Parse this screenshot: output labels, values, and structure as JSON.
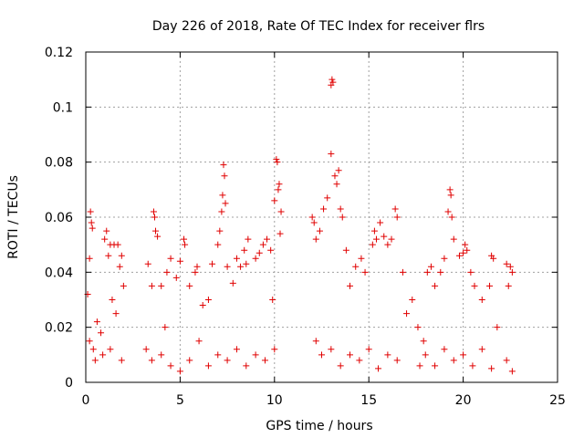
{
  "chart_data": {
    "type": "scatter",
    "title": "Day 226 of 2018, Rate Of TEC Index for receiver flrs",
    "xlabel": "GPS time / hours",
    "ylabel": "ROTI / TECUs",
    "xlim": [
      0,
      25
    ],
    "ylim": [
      0,
      0.12
    ],
    "xticks": [
      "0",
      "5",
      "10",
      "15",
      "20",
      "25"
    ],
    "yticks": [
      "0",
      "0.02",
      "0.04",
      "0.06",
      "0.08",
      "0.1",
      "0.12"
    ],
    "grid": true,
    "marker": "+",
    "colors": {
      "series": "#e00000",
      "grid": "#a0a0a0",
      "axis": "#000000"
    },
    "series": [
      {
        "name": "ROTI",
        "points": [
          [
            0.1,
            0.032
          ],
          [
            0.2,
            0.045
          ],
          [
            0.25,
            0.062
          ],
          [
            0.3,
            0.058
          ],
          [
            0.35,
            0.056
          ],
          [
            0.2,
            0.015
          ],
          [
            0.4,
            0.012
          ],
          [
            0.6,
            0.022
          ],
          [
            0.8,
            0.018
          ],
          [
            1.0,
            0.052
          ],
          [
            1.1,
            0.055
          ],
          [
            1.2,
            0.046
          ],
          [
            1.3,
            0.05
          ],
          [
            1.5,
            0.05
          ],
          [
            1.7,
            0.05
          ],
          [
            1.8,
            0.042
          ],
          [
            1.9,
            0.046
          ],
          [
            2.0,
            0.035
          ],
          [
            1.4,
            0.03
          ],
          [
            1.6,
            0.025
          ],
          [
            0.5,
            0.008
          ],
          [
            0.9,
            0.01
          ],
          [
            1.3,
            0.012
          ],
          [
            1.9,
            0.008
          ],
          [
            3.3,
            0.043
          ],
          [
            3.5,
            0.035
          ],
          [
            3.6,
            0.062
          ],
          [
            3.65,
            0.06
          ],
          [
            3.7,
            0.055
          ],
          [
            3.8,
            0.053
          ],
          [
            4.0,
            0.035
          ],
          [
            4.2,
            0.02
          ],
          [
            4.3,
            0.04
          ],
          [
            4.5,
            0.045
          ],
          [
            4.8,
            0.038
          ],
          [
            5.0,
            0.044
          ],
          [
            5.2,
            0.052
          ],
          [
            5.25,
            0.05
          ],
          [
            5.5,
            0.035
          ],
          [
            5.8,
            0.04
          ],
          [
            5.9,
            0.042
          ],
          [
            6.2,
            0.028
          ],
          [
            6.5,
            0.03
          ],
          [
            6.7,
            0.043
          ],
          [
            7.0,
            0.05
          ],
          [
            7.1,
            0.055
          ],
          [
            7.2,
            0.062
          ],
          [
            7.25,
            0.068
          ],
          [
            7.3,
            0.079
          ],
          [
            7.35,
            0.075
          ],
          [
            7.4,
            0.065
          ],
          [
            7.5,
            0.042
          ],
          [
            7.8,
            0.036
          ],
          [
            8.0,
            0.045
          ],
          [
            8.2,
            0.042
          ],
          [
            8.4,
            0.048
          ],
          [
            8.5,
            0.043
          ],
          [
            8.6,
            0.052
          ],
          [
            9.0,
            0.045
          ],
          [
            9.2,
            0.047
          ],
          [
            9.4,
            0.05
          ],
          [
            9.6,
            0.052
          ],
          [
            9.8,
            0.048
          ],
          [
            10.0,
            0.066
          ],
          [
            10.1,
            0.081
          ],
          [
            10.15,
            0.08
          ],
          [
            10.2,
            0.07
          ],
          [
            10.25,
            0.072
          ],
          [
            10.3,
            0.054
          ],
          [
            10.35,
            0.062
          ],
          [
            9.9,
            0.03
          ],
          [
            3.2,
            0.012
          ],
          [
            3.5,
            0.008
          ],
          [
            4.0,
            0.01
          ],
          [
            4.5,
            0.006
          ],
          [
            5.0,
            0.004
          ],
          [
            5.5,
            0.008
          ],
          [
            6.0,
            0.015
          ],
          [
            6.5,
            0.006
          ],
          [
            7.0,
            0.01
          ],
          [
            7.5,
            0.008
          ],
          [
            8.0,
            0.012
          ],
          [
            8.5,
            0.006
          ],
          [
            9.0,
            0.01
          ],
          [
            9.5,
            0.008
          ],
          [
            10.0,
            0.012
          ],
          [
            12.0,
            0.06
          ],
          [
            12.1,
            0.058
          ],
          [
            12.2,
            0.052
          ],
          [
            12.4,
            0.055
          ],
          [
            12.6,
            0.063
          ],
          [
            12.8,
            0.067
          ],
          [
            13.0,
            0.108
          ],
          [
            13.05,
            0.11
          ],
          [
            13.1,
            0.109
          ],
          [
            13.0,
            0.083
          ],
          [
            13.2,
            0.075
          ],
          [
            13.3,
            0.072
          ],
          [
            13.4,
            0.077
          ],
          [
            13.5,
            0.063
          ],
          [
            13.6,
            0.06
          ],
          [
            13.8,
            0.048
          ],
          [
            14.0,
            0.035
          ],
          [
            14.3,
            0.042
          ],
          [
            14.6,
            0.045
          ],
          [
            14.8,
            0.04
          ],
          [
            15.2,
            0.05
          ],
          [
            15.3,
            0.055
          ],
          [
            15.4,
            0.052
          ],
          [
            15.6,
            0.058
          ],
          [
            15.8,
            0.053
          ],
          [
            16.0,
            0.05
          ],
          [
            16.2,
            0.052
          ],
          [
            16.4,
            0.063
          ],
          [
            16.5,
            0.06
          ],
          [
            16.8,
            0.04
          ],
          [
            12.2,
            0.015
          ],
          [
            12.5,
            0.01
          ],
          [
            13.0,
            0.012
          ],
          [
            13.5,
            0.006
          ],
          [
            14.0,
            0.01
          ],
          [
            14.5,
            0.008
          ],
          [
            15.0,
            0.012
          ],
          [
            15.5,
            0.005
          ],
          [
            16.0,
            0.01
          ],
          [
            16.5,
            0.008
          ],
          [
            17.0,
            0.025
          ],
          [
            17.3,
            0.03
          ],
          [
            17.6,
            0.02
          ],
          [
            17.7,
            0.006
          ],
          [
            17.9,
            0.015
          ],
          [
            18.1,
            0.04
          ],
          [
            18.3,
            0.042
          ],
          [
            18.5,
            0.035
          ],
          [
            18.8,
            0.04
          ],
          [
            19.0,
            0.045
          ],
          [
            19.2,
            0.062
          ],
          [
            19.3,
            0.07
          ],
          [
            19.35,
            0.068
          ],
          [
            19.4,
            0.06
          ],
          [
            19.5,
            0.052
          ],
          [
            19.8,
            0.046
          ],
          [
            20.0,
            0.047
          ],
          [
            20.1,
            0.05
          ],
          [
            20.2,
            0.048
          ],
          [
            20.4,
            0.04
          ],
          [
            20.6,
            0.035
          ],
          [
            21.0,
            0.03
          ],
          [
            21.4,
            0.035
          ],
          [
            21.5,
            0.046
          ],
          [
            21.6,
            0.045
          ],
          [
            21.8,
            0.02
          ],
          [
            22.3,
            0.043
          ],
          [
            22.5,
            0.042
          ],
          [
            22.6,
            0.04
          ],
          [
            22.4,
            0.035
          ],
          [
            18.0,
            0.01
          ],
          [
            18.5,
            0.006
          ],
          [
            19.0,
            0.012
          ],
          [
            19.5,
            0.008
          ],
          [
            20.0,
            0.01
          ],
          [
            20.5,
            0.006
          ],
          [
            21.0,
            0.012
          ],
          [
            21.5,
            0.005
          ],
          [
            22.3,
            0.008
          ],
          [
            22.6,
            0.004
          ]
        ]
      }
    ]
  }
}
